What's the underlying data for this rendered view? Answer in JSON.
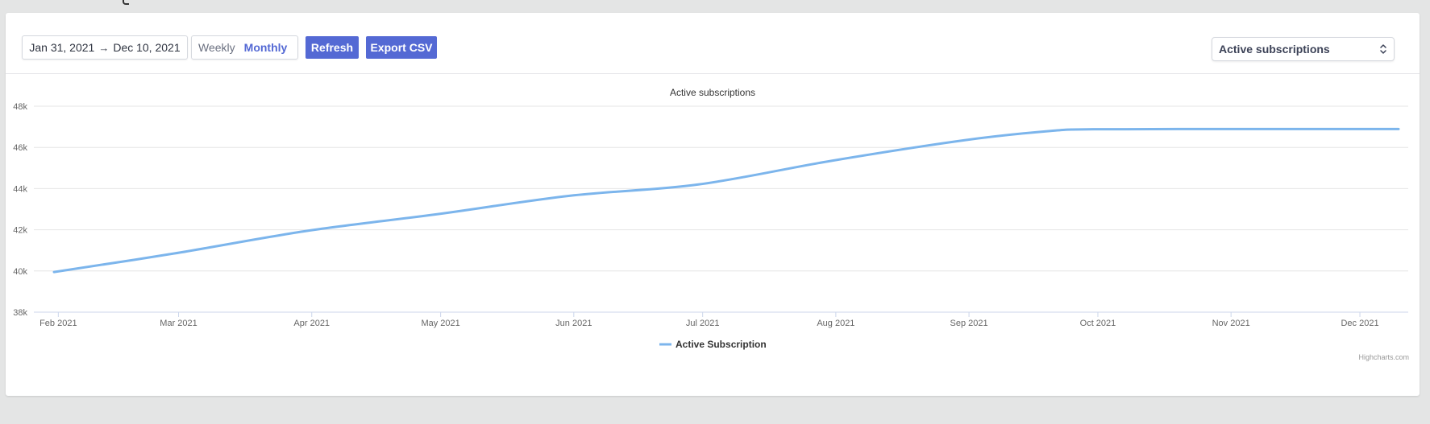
{
  "toolbar": {
    "date_start": "Jan 31, 2021",
    "date_arrow": "→",
    "date_end": "Dec 10, 2021",
    "interval_options": [
      "Weekly",
      "Monthly"
    ],
    "interval_selected": "Monthly",
    "refresh_label": "Refresh",
    "export_label": "Export CSV",
    "metric_selected": "Active subscriptions"
  },
  "colors": {
    "accent": "#5469d4",
    "series": "#7cb5ec",
    "grid": "#e6e6e6",
    "axis_text": "#666666"
  },
  "chart_data": {
    "type": "line",
    "title": "Active subscriptions",
    "xlabel": "",
    "ylabel": "",
    "x_tick_labels": [
      "Feb 2021",
      "Mar 2021",
      "Apr 2021",
      "May 2021",
      "Jun 2021",
      "Jul 2021",
      "Aug 2021",
      "Sep 2021",
      "Oct 2021",
      "Nov 2021",
      "Dec 2021"
    ],
    "y_tick_labels": [
      "38k",
      "40k",
      "42k",
      "44k",
      "46k",
      "48k"
    ],
    "ylim": [
      38000,
      48000
    ],
    "grid": true,
    "legend_placement": "bottom-center",
    "series": [
      {
        "name": "Active Subscription",
        "x": [
          "2021-01-31",
          "2021-02-28",
          "2021-03-31",
          "2021-04-30",
          "2021-05-31",
          "2021-06-30",
          "2021-07-31",
          "2021-08-31",
          "2021-09-20",
          "2021-09-30",
          "2021-10-31",
          "2021-11-30",
          "2021-12-10"
        ],
        "values": [
          39950,
          40850,
          41950,
          42750,
          43650,
          44200,
          45350,
          46350,
          46800,
          46880,
          46890,
          46890,
          46890
        ]
      }
    ],
    "credits": "Highcharts.com"
  }
}
